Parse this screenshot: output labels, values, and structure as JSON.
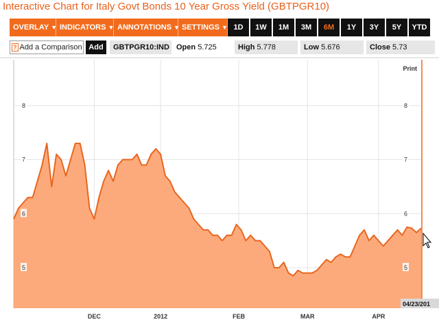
{
  "title": "Interactive Chart for Italy Govt Bonds 10 Year Gross Yield (GBTPGR10)",
  "menus": [
    {
      "label": "OVERLAY"
    },
    {
      "label": "INDICATORS"
    },
    {
      "label": "ANNOTATIONS"
    },
    {
      "label": "SETTINGS"
    }
  ],
  "ranges": [
    "1D",
    "1W",
    "1M",
    "3M",
    "6M",
    "1Y",
    "3Y",
    "5Y",
    "YTD"
  ],
  "active_range": "6M",
  "compare": {
    "hint_icon": "?",
    "label": "Add a Comparison",
    "add_label": "Add"
  },
  "ticker": "GBTPGR10:IND",
  "quote": {
    "open_label": "Open",
    "open": "5.725",
    "high_label": "High",
    "high": "5.778",
    "low_label": "Low",
    "low": "5.676",
    "close_label": "Close",
    "close": "5.73"
  },
  "print_label": "Print",
  "date_badge": "04/23/201",
  "colors": {
    "accent": "#f26b1d",
    "fill": "#fcaa7c",
    "line": "#e8661f"
  },
  "chart_data": {
    "type": "area",
    "title": "",
    "ylim": [
      4.25,
      8.9
    ],
    "y_ticks": [
      5,
      6,
      7,
      8
    ],
    "x_labels": [
      {
        "label": "DEC",
        "x": 17
      },
      {
        "label": "2012",
        "x": 31
      },
      {
        "label": "FEB",
        "x": 47.5
      },
      {
        "label": "MAR",
        "x": 62
      },
      {
        "label": "APR",
        "x": 77
      }
    ],
    "x_range": [
      0,
      86
    ],
    "x": [
      0,
      1,
      2,
      3,
      4,
      5,
      6,
      7,
      8,
      9,
      10,
      11,
      12,
      13,
      14,
      15,
      16,
      17,
      18,
      19,
      20,
      21,
      22,
      23,
      24,
      25,
      26,
      27,
      28,
      29,
      30,
      31,
      32,
      33,
      34,
      35,
      36,
      37,
      38,
      39,
      40,
      41,
      42,
      43,
      44,
      45,
      46,
      47,
      48,
      49,
      50,
      51,
      52,
      53,
      54,
      55,
      56,
      57,
      58,
      59,
      60,
      61,
      62,
      63,
      64,
      65,
      66,
      67,
      68,
      69,
      70,
      71,
      72,
      73,
      74,
      75,
      76,
      77,
      78,
      79,
      80,
      81,
      82,
      83,
      84,
      85,
      86
    ],
    "values": [
      5.9,
      6.1,
      6.2,
      6.3,
      6.3,
      6.6,
      6.9,
      7.3,
      6.5,
      7.1,
      7.0,
      6.7,
      7.0,
      7.3,
      7.3,
      6.9,
      6.1,
      5.9,
      6.3,
      6.6,
      6.8,
      6.6,
      6.9,
      7.0,
      7.0,
      7.0,
      7.1,
      6.9,
      6.9,
      7.1,
      7.2,
      7.1,
      6.7,
      6.6,
      6.4,
      6.3,
      6.2,
      6.1,
      5.9,
      5.8,
      5.7,
      5.7,
      5.6,
      5.6,
      5.5,
      5.6,
      5.6,
      5.8,
      5.7,
      5.5,
      5.6,
      5.5,
      5.5,
      5.4,
      5.3,
      5.0,
      5.0,
      5.1,
      4.9,
      4.85,
      4.95,
      4.9,
      4.9,
      4.9,
      4.95,
      5.05,
      5.15,
      5.1,
      5.2,
      5.25,
      5.2,
      5.2,
      5.4,
      5.6,
      5.7,
      5.5,
      5.6,
      5.5,
      5.4,
      5.5,
      5.6,
      5.7,
      5.6,
      5.75,
      5.73,
      5.65,
      5.73
    ]
  }
}
